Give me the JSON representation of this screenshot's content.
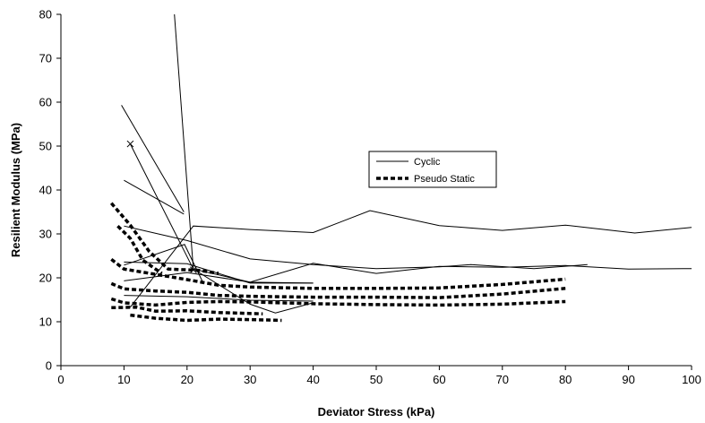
{
  "chart_data": {
    "type": "line",
    "title": "",
    "xlabel": "Deviator Stress (kPa)",
    "ylabel": "Resilient Modulus (MPa)",
    "xlim": [
      0,
      100
    ],
    "ylim": [
      0,
      80
    ],
    "x_ticks": [
      0,
      10,
      20,
      30,
      40,
      50,
      60,
      70,
      80,
      90,
      100
    ],
    "y_ticks": [
      0,
      10,
      20,
      30,
      40,
      50,
      60,
      70,
      80
    ],
    "grid": false,
    "legend_position": "upper-right-inside",
    "legend": [
      {
        "label": "Cyclic",
        "style": "solid"
      },
      {
        "label": "Pseudo Static",
        "style": "dashed-thick"
      }
    ],
    "series": [
      {
        "style": "cyclic",
        "points": [
          [
            18,
            80
          ],
          [
            21,
            22
          ],
          [
            30,
            19
          ],
          [
            40,
            23.3
          ],
          [
            50,
            21
          ],
          [
            60,
            22.6
          ],
          [
            70,
            22.4
          ],
          [
            80,
            22.8
          ],
          [
            90,
            22
          ],
          [
            100,
            22.1
          ]
        ]
      },
      {
        "style": "cyclic",
        "points": [
          [
            10,
            42.2
          ],
          [
            19.5,
            34.5
          ]
        ]
      },
      {
        "style": "cyclic",
        "points": [
          [
            9.6,
            59.3
          ],
          [
            19.5,
            35
          ]
        ]
      },
      {
        "style": "cyclic",
        "points": [
          [
            11,
            50.5
          ],
          [
            21,
            22
          ],
          [
            30,
            14
          ],
          [
            34,
            12
          ],
          [
            40,
            14.3
          ]
        ]
      },
      {
        "style": "cyclic",
        "points": [
          [
            11,
            13.3
          ],
          [
            21,
            31.8
          ],
          [
            30,
            31
          ],
          [
            40,
            30.3
          ],
          [
            49,
            35.3
          ],
          [
            60,
            31.9
          ],
          [
            70,
            30.8
          ],
          [
            80,
            32
          ],
          [
            91,
            30.2
          ],
          [
            100,
            31.5
          ]
        ]
      },
      {
        "style": "cyclic",
        "points": [
          [
            10,
            31.8
          ],
          [
            20,
            28.5
          ],
          [
            30,
            24.3
          ],
          [
            40,
            23
          ],
          [
            50,
            22.1
          ],
          [
            60,
            22.5
          ],
          [
            65,
            23
          ],
          [
            75,
            22.1
          ],
          [
            83.5,
            23
          ]
        ]
      },
      {
        "style": "cyclic",
        "points": [
          [
            10,
            23.6
          ],
          [
            20,
            23.2
          ],
          [
            30,
            18.8
          ],
          [
            40,
            18.8
          ]
        ]
      },
      {
        "style": "cyclic",
        "points": [
          [
            10,
            22.9
          ],
          [
            19.6,
            27.6
          ],
          [
            22.5,
            19
          ]
        ]
      },
      {
        "style": "cyclic",
        "points": [
          [
            10,
            19.3
          ],
          [
            20,
            21.2
          ],
          [
            30,
            19
          ],
          [
            40,
            18.8
          ]
        ]
      },
      {
        "style": "cyclic",
        "points": [
          [
            10,
            16
          ],
          [
            20,
            15.7
          ],
          [
            30,
            14.9
          ],
          [
            40,
            14.7
          ]
        ]
      },
      {
        "style": "pseudo",
        "points": [
          [
            8,
            37
          ],
          [
            11,
            32
          ],
          [
            14,
            26
          ],
          [
            17,
            22
          ],
          [
            22,
            21.7
          ],
          [
            25,
            21
          ]
        ]
      },
      {
        "style": "pseudo",
        "points": [
          [
            9,
            31.8
          ],
          [
            11,
            29
          ],
          [
            13,
            24
          ],
          [
            16,
            21
          ]
        ]
      },
      {
        "style": "pseudo",
        "points": [
          [
            8,
            24.2
          ],
          [
            10,
            22
          ],
          [
            15,
            20.8
          ],
          [
            20,
            19.6
          ],
          [
            25,
            18.3
          ],
          [
            30,
            17.9
          ],
          [
            40,
            17.6
          ],
          [
            50,
            17.6
          ],
          [
            60,
            17.7
          ],
          [
            70,
            18.5
          ],
          [
            80,
            19.7
          ]
        ]
      },
      {
        "style": "pseudo",
        "points": [
          [
            8,
            18.7
          ],
          [
            10,
            17.5
          ],
          [
            15,
            17
          ],
          [
            20,
            16.7
          ],
          [
            25,
            16
          ],
          [
            30,
            15.8
          ],
          [
            40,
            15.6
          ],
          [
            50,
            15.6
          ],
          [
            60,
            15.5
          ],
          [
            70,
            16.3
          ],
          [
            80,
            17.6
          ]
        ]
      },
      {
        "style": "pseudo",
        "points": [
          [
            8,
            15.2
          ],
          [
            10,
            14.3
          ],
          [
            15,
            13.8
          ],
          [
            20,
            14.4
          ],
          [
            25,
            14.6
          ],
          [
            30,
            14.5
          ],
          [
            40,
            14.1
          ],
          [
            50,
            13.9
          ],
          [
            60,
            13.8
          ],
          [
            70,
            14
          ],
          [
            80,
            14.6
          ]
        ]
      },
      {
        "style": "pseudo",
        "points": [
          [
            8,
            13.2
          ],
          [
            12,
            13.3
          ],
          [
            15,
            12.4
          ],
          [
            20,
            12.5
          ],
          [
            25,
            12.1
          ],
          [
            32,
            11.8
          ]
        ]
      },
      {
        "style": "pseudo",
        "points": [
          [
            11,
            11.5
          ],
          [
            15,
            10.8
          ],
          [
            20,
            10.3
          ],
          [
            25,
            10.6
          ],
          [
            30,
            10.5
          ],
          [
            35,
            10.3
          ]
        ]
      }
    ],
    "markers": [
      {
        "shape": "x",
        "point": [
          11,
          50.5
        ]
      },
      {
        "shape": "x",
        "point": [
          21,
          21.8
        ]
      }
    ]
  }
}
